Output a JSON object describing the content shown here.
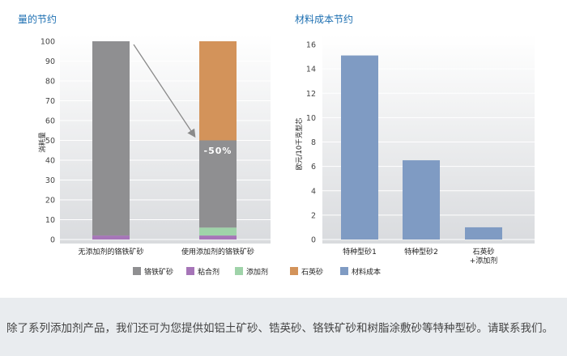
{
  "chart_data": [
    {
      "type": "bar",
      "stacked": true,
      "title": "量的节约",
      "ylabel": "消耗量",
      "ylim": [
        0,
        100
      ],
      "yticks": [
        0,
        10,
        20,
        30,
        40,
        50,
        60,
        70,
        80,
        90,
        100
      ],
      "categories": [
        "无添加剂的铬铁矿砂",
        "使用添加剂的铬铁矿砂"
      ],
      "series": [
        {
          "name": "粘合剂",
          "values": [
            2,
            2
          ],
          "color": "#a675b8"
        },
        {
          "name": "添加剂",
          "values": [
            0,
            4
          ],
          "color": "#9fd3a9"
        },
        {
          "name": "铬铁矿砂",
          "values": [
            98,
            44
          ],
          "color": "#8f8f91"
        },
        {
          "name": "石英砂",
          "values": [
            0,
            50
          ],
          "color": "#d3935a"
        }
      ],
      "annotation": "-50%",
      "grid": true
    },
    {
      "type": "bar",
      "title": "材料成本节约",
      "ylabel": "欧元/10千克型芯",
      "ylim": [
        0,
        16
      ],
      "yticks": [
        0,
        2,
        4,
        6,
        8,
        10,
        12,
        14,
        16
      ],
      "categories": [
        "特种型砂1",
        "特种型砂2",
        "石英砂\n+添加剂"
      ],
      "series": [
        {
          "name": "材料成本",
          "values": [
            15.1,
            6.5,
            1.0
          ],
          "color": "#7f9bc3"
        }
      ],
      "grid": true
    }
  ],
  "legend": [
    {
      "label": "铬铁矿砂",
      "color": "#8f8f91"
    },
    {
      "label": "粘合剂",
      "color": "#a675b8"
    },
    {
      "label": "添加剂",
      "color": "#9fd3a9"
    },
    {
      "label": "石英砂",
      "color": "#d3935a"
    },
    {
      "label": "材料成本",
      "color": "#7f9bc3"
    }
  ],
  "footer": {
    "text": "除了系列添加剂产品，我们还可为您提供如铝土矿砂、锆英砂、铬铁矿砂和树脂涂敷砂等特种型砂。请联系我们。"
  }
}
